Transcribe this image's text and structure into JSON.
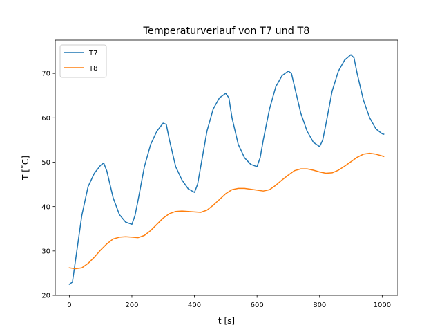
{
  "chart_data": {
    "type": "line",
    "title": "Temperaturverlauf von T7 und T8",
    "xlabel": "t [s]",
    "ylabel": "T [˚C]",
    "xlim": [
      -45,
      1050
    ],
    "ylim": [
      20,
      77.5
    ],
    "xticks": [
      0,
      200,
      400,
      600,
      800,
      1000
    ],
    "yticks": [
      20,
      30,
      40,
      50,
      60,
      70
    ],
    "xtick_labels": [
      "0",
      "200",
      "400",
      "600",
      "800",
      "1000"
    ],
    "ytick_labels": [
      "20",
      "30",
      "40",
      "50",
      "60",
      "70"
    ],
    "grid": false,
    "legend_position": "top-left",
    "series": [
      {
        "name": "T7",
        "color": "#1f77b4",
        "x": [
          0,
          10,
          20,
          40,
          60,
          80,
          100,
          110,
          120,
          140,
          160,
          180,
          200,
          210,
          220,
          240,
          260,
          280,
          300,
          310,
          320,
          340,
          360,
          380,
          400,
          410,
          420,
          440,
          460,
          480,
          500,
          510,
          520,
          540,
          560,
          580,
          600,
          610,
          620,
          640,
          660,
          680,
          700,
          710,
          720,
          740,
          760,
          780,
          800,
          810,
          820,
          840,
          860,
          880,
          900,
          910,
          920,
          940,
          960,
          980,
          1000,
          1005
        ],
        "values": [
          22.5,
          23,
          28,
          38,
          44.5,
          47.5,
          49.3,
          49.8,
          48,
          42,
          38.2,
          36.5,
          36.0,
          38,
          41.5,
          49,
          54,
          57,
          58.8,
          58.5,
          55,
          49,
          46,
          44,
          43.2,
          45,
          49,
          57,
          62,
          64.5,
          65.5,
          64.5,
          60,
          54,
          51,
          49.5,
          49.0,
          51,
          55,
          62,
          67,
          69.5,
          70.5,
          70,
          67,
          61,
          57,
          54.5,
          53.5,
          55,
          58.5,
          66,
          70.5,
          73,
          74.2,
          73.5,
          70,
          64,
          60,
          57.5,
          56.4,
          56.3
        ]
      },
      {
        "name": "T8",
        "color": "#ff7f0e",
        "x": [
          0,
          20,
          40,
          60,
          80,
          100,
          120,
          140,
          160,
          180,
          200,
          220,
          240,
          260,
          280,
          300,
          320,
          340,
          360,
          380,
          400,
          420,
          440,
          460,
          480,
          500,
          520,
          540,
          560,
          580,
          600,
          620,
          640,
          660,
          680,
          700,
          720,
          740,
          760,
          780,
          800,
          820,
          840,
          860,
          880,
          900,
          920,
          940,
          960,
          980,
          1000,
          1005
        ],
        "values": [
          26.2,
          26.0,
          26.2,
          27.2,
          28.6,
          30.2,
          31.6,
          32.7,
          33.1,
          33.2,
          33.1,
          33.0,
          33.5,
          34.6,
          36.0,
          37.4,
          38.4,
          38.9,
          39.0,
          38.9,
          38.8,
          38.7,
          39.2,
          40.3,
          41.6,
          42.9,
          43.8,
          44.1,
          44.1,
          43.9,
          43.7,
          43.5,
          43.8,
          44.8,
          46.0,
          47.1,
          48.1,
          48.5,
          48.5,
          48.2,
          47.8,
          47.5,
          47.6,
          48.2,
          49.1,
          50.1,
          51.1,
          51.8,
          52.0,
          51.8,
          51.4,
          51.3
        ]
      }
    ]
  }
}
